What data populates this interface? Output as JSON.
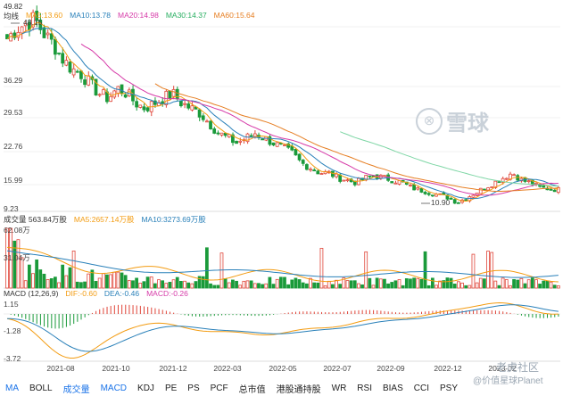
{
  "price_panel": {
    "title": "均线",
    "top_value": "49.82",
    "ma_legend": [
      {
        "label": "MA5:13.60",
        "color": "#f39c12"
      },
      {
        "label": "MA10:13.78",
        "color": "#2980b9"
      },
      {
        "label": "MA20:14.98",
        "color": "#d63aa8"
      },
      {
        "label": "MA30:14.37",
        "color": "#27ae60"
      },
      {
        "label": "MA60:15.64",
        "color": "#e67e22"
      }
    ],
    "y_ticks": [
      "36.29",
      "29.53",
      "22.76",
      "15.99",
      "9.23"
    ],
    "high_label": "48.15",
    "low_label": "10.90"
  },
  "volume_panel": {
    "title": "成交量 563.84万股",
    "legend": [
      {
        "label": "MA5:2657.14万股",
        "color": "#f39c12"
      },
      {
        "label": "MA10:3273.69万股",
        "color": "#2980b9"
      }
    ],
    "y_ticks": [
      "62.08万",
      "31.04万"
    ]
  },
  "macd_panel": {
    "title": "MACD (12,26,9)",
    "legend": [
      {
        "label": "DIF:-0.60",
        "color": "#f39c12"
      },
      {
        "label": "DEA:-0.46",
        "color": "#2980b9"
      },
      {
        "label": "MACD:-0.26",
        "color": "#d63aa8"
      }
    ],
    "y_ticks": [
      "1.15",
      "-1.28",
      "-3.72"
    ]
  },
  "x_axis": [
    "2021-08",
    "2021-10",
    "2021-12",
    "2022-03",
    "2022-05",
    "2022-07",
    "2022-09",
    "2022-12",
    "2023-02"
  ],
  "tabs": [
    "MA",
    "BOLL",
    "成交量",
    "MACD",
    "KDJ",
    "PE",
    "PS",
    "PCF",
    "总市值",
    "港股通持股",
    "WR",
    "RSI",
    "BIAS",
    "CCI",
    "PSY"
  ],
  "active_tabs": [
    "MA",
    "成交量",
    "MACD"
  ],
  "watermark": {
    "brand": "雪球",
    "caption_1": "老虎社区",
    "caption_2": "@价值星球Planet"
  },
  "colors": {
    "up": "#e0463a",
    "down": "#1a9a3a",
    "accent": "#1a73e8"
  },
  "chart_data": {
    "type": "candlestick",
    "price_range": [
      9.23,
      49.82
    ],
    "price_path": [
      44,
      46,
      47,
      48,
      45,
      43,
      40,
      38,
      37,
      35,
      33,
      32,
      34,
      33,
      31,
      30,
      31,
      32,
      33,
      31,
      30,
      29,
      27,
      25,
      24,
      23,
      24,
      25,
      24,
      23,
      22,
      21,
      19,
      18,
      17,
      17,
      16,
      15.5,
      15,
      16,
      16.5,
      16,
      15.5,
      15,
      14,
      13.5,
      13,
      12.5,
      12,
      11,
      12,
      13,
      14,
      15,
      16,
      17,
      15.5,
      15,
      14,
      13.8,
      13.6
    ],
    "volume_range": [
      0,
      62.08
    ]
  }
}
